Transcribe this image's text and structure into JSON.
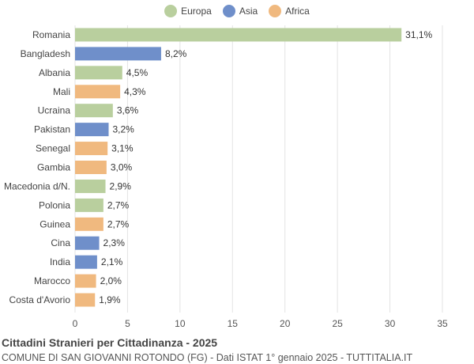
{
  "chart_data": {
    "type": "bar",
    "orientation": "horizontal",
    "categories": [
      "Romania",
      "Bangladesh",
      "Albania",
      "Mali",
      "Ucraina",
      "Pakistan",
      "Senegal",
      "Gambia",
      "Macedonia d/N.",
      "Polonia",
      "Guinea",
      "Cina",
      "India",
      "Marocco",
      "Costa d'Avorio"
    ],
    "values": [
      31.1,
      8.2,
      4.5,
      4.3,
      3.6,
      3.2,
      3.1,
      3.0,
      2.9,
      2.7,
      2.7,
      2.3,
      2.1,
      2.0,
      1.9
    ],
    "value_labels": [
      "31,1%",
      "8,2%",
      "4,5%",
      "4,3%",
      "3,6%",
      "3,2%",
      "3,1%",
      "3,0%",
      "2,9%",
      "2,7%",
      "2,7%",
      "2,3%",
      "2,1%",
      "2,0%",
      "1,9%"
    ],
    "groups": [
      "Europa",
      "Asia",
      "Europa",
      "Africa",
      "Europa",
      "Asia",
      "Africa",
      "Africa",
      "Europa",
      "Europa",
      "Africa",
      "Asia",
      "Asia",
      "Africa",
      "Africa"
    ],
    "legend": [
      {
        "name": "Europa",
        "color": "#b9cf9e"
      },
      {
        "name": "Asia",
        "color": "#6f8fca"
      },
      {
        "name": "Africa",
        "color": "#f0b97f"
      }
    ],
    "xlim": [
      0,
      35
    ],
    "xticks": [
      0,
      5,
      10,
      15,
      20,
      25,
      30,
      35
    ],
    "grid": true,
    "legend_position": "top-center",
    "title": "Cittadini Stranieri per Cittadinanza - 2025",
    "subtitle": "COMUNE DI SAN GIOVANNI ROTONDO (FG) - Dati ISTAT 1° gennaio 2025 - TUTTITALIA.IT"
  }
}
